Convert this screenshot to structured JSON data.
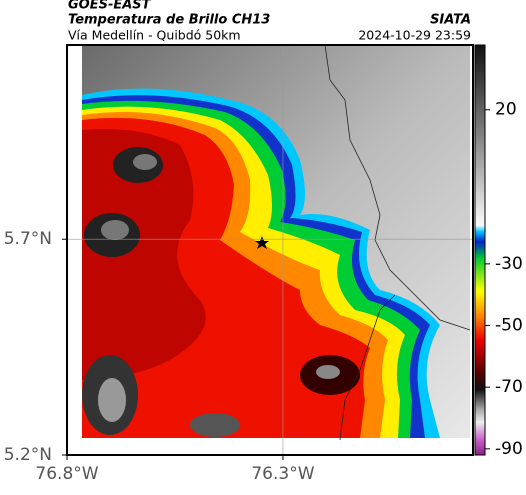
{
  "header": {
    "left_title": "GOES-EAST",
    "left_subtitle": "Temperatura de Brillo CH13",
    "left_caption": "Vía Medellín - Quibdó 50km",
    "right_title": "SIATA",
    "right_caption": "2024-10-29 23:59"
  },
  "map": {
    "xlim": [
      -76.8,
      -75.86
    ],
    "ylim": [
      5.2,
      6.15
    ],
    "xticks": [
      {
        "value": -76.8,
        "label": "76.8°W"
      },
      {
        "value": -76.3,
        "label": "76.3°W"
      }
    ],
    "yticks": [
      {
        "value": 5.2,
        "label": "5.2°N"
      },
      {
        "value": 5.7,
        "label": "5.7°N"
      }
    ],
    "grid": true
  },
  "colorbar": {
    "range": [
      -92,
      41
    ],
    "ticks": [
      20,
      -30,
      -50,
      -70,
      -90
    ]
  }
}
